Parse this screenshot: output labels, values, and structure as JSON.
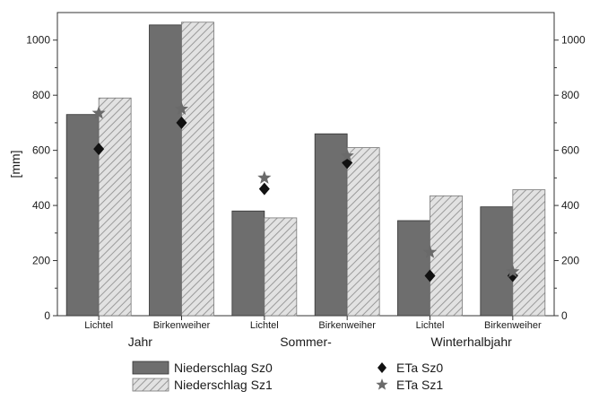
{
  "chart_data": {
    "type": "bar",
    "ylabel": "[mm]",
    "ylim": [
      0,
      1100
    ],
    "yticks": [
      0,
      200,
      400,
      600,
      800,
      1000
    ],
    "grid": false,
    "legend_position": "bottom",
    "categories": [
      "Lichtel",
      "Birkenweiher",
      "Lichtel",
      "Birkenweiher",
      "Lichtel",
      "Birkenweiher"
    ],
    "groups": [
      "Jahr",
      "Sommer-",
      "Winterhalbjahr"
    ],
    "series": [
      {
        "name": "Niederschlag Sz0",
        "kind": "bar",
        "values": [
          730,
          1055,
          380,
          660,
          345,
          395
        ]
      },
      {
        "name": "Niederschlag Sz1",
        "kind": "bar",
        "values": [
          790,
          1065,
          355,
          610,
          435,
          457
        ]
      },
      {
        "name": "ETa Sz0",
        "kind": "marker",
        "values": [
          605,
          700,
          460,
          555,
          145,
          145
        ]
      },
      {
        "name": "ETa Sz1",
        "kind": "marker",
        "values": [
          735,
          750,
          500,
          580,
          230,
          160
        ]
      }
    ],
    "colors": {
      "sz0_bar": "#6e6e6e",
      "sz1_bar_fill": "#e2e2e2",
      "sz1_bar_hatch": "#9a9a9a",
      "eta_sz0_marker": "#111111",
      "eta_sz1_marker": "#6a6a6a"
    }
  }
}
